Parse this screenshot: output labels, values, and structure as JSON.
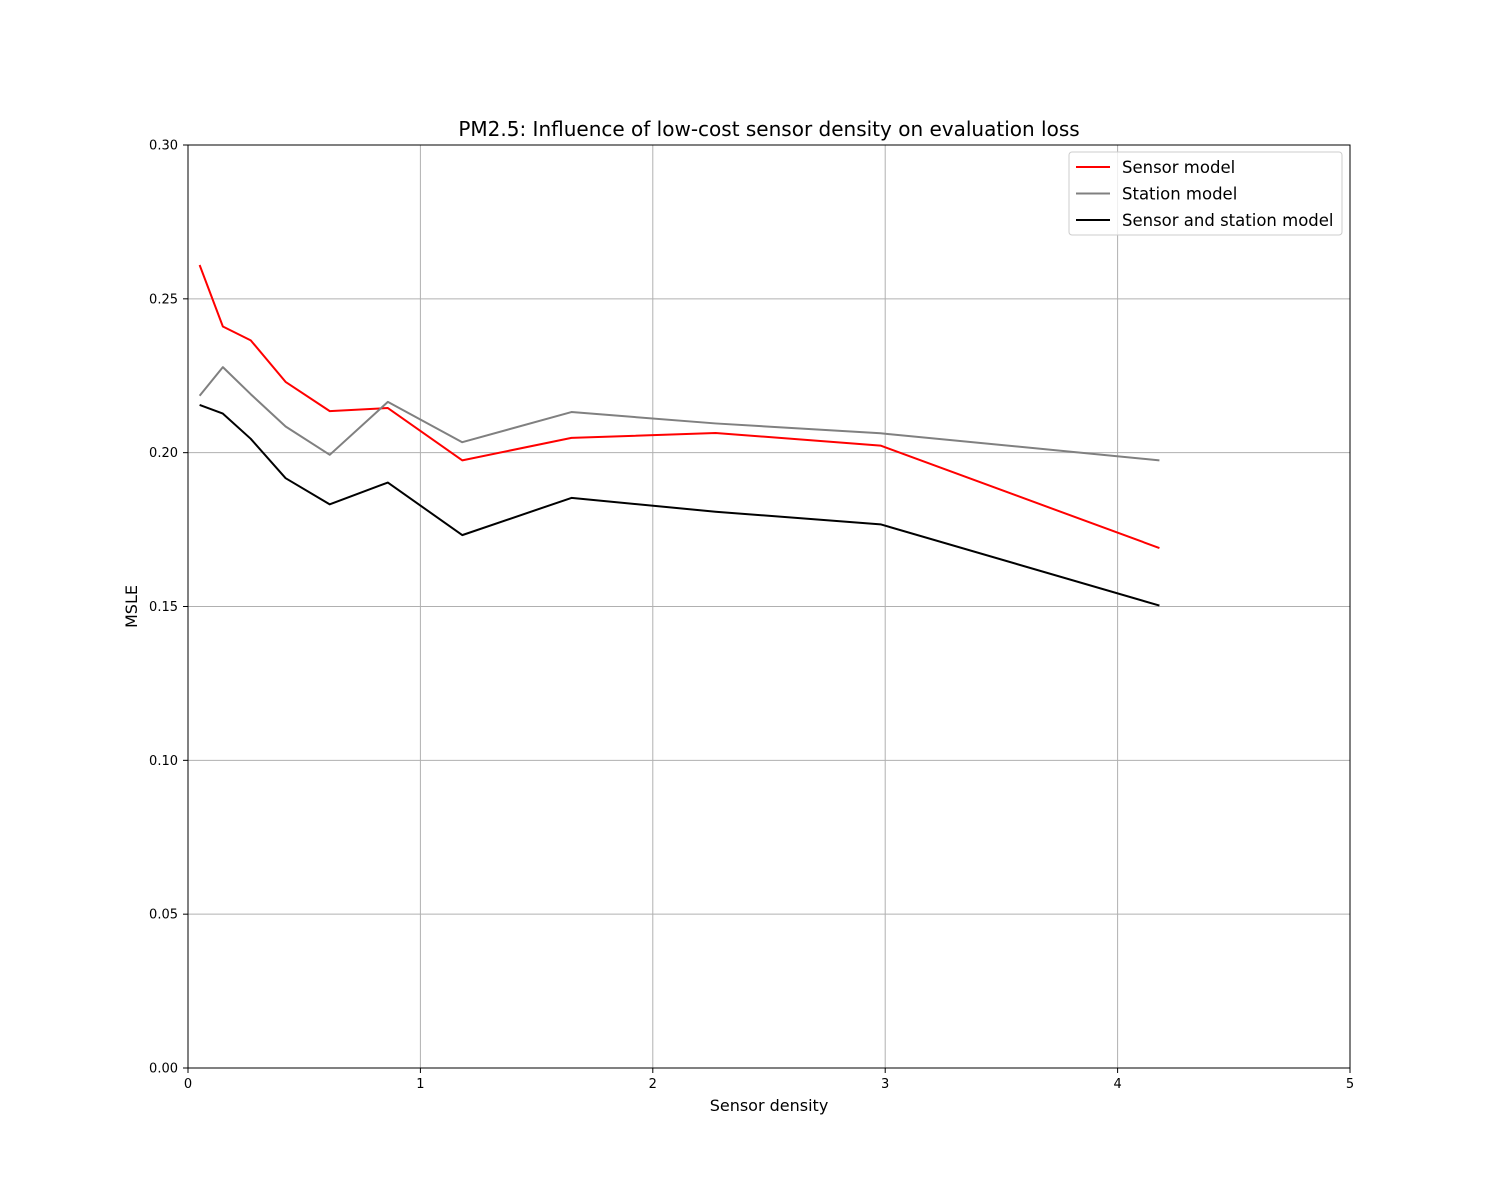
{
  "chart_data": {
    "type": "line",
    "title": "PM2.5: Influence of low-cost sensor density on evaluation loss",
    "xlabel": "Sensor density",
    "ylabel": "MSLE",
    "xlim": [
      0,
      5
    ],
    "ylim": [
      0,
      0.3
    ],
    "xticks": [
      0,
      1,
      2,
      3,
      4,
      5
    ],
    "xtick_labels": [
      "0",
      "1",
      "2",
      "3",
      "4",
      "5"
    ],
    "yticks": [
      0,
      0.05,
      0.1,
      0.15,
      0.2,
      0.25,
      0.3
    ],
    "ytick_labels": [
      "0.00",
      "0.05",
      "0.10",
      "0.15",
      "0.20",
      "0.25",
      "0.30"
    ],
    "grid": true,
    "legend_position": "top-right",
    "x": [
      0.05,
      0.15,
      0.27,
      0.42,
      0.61,
      0.86,
      1.18,
      1.65,
      2.27,
      2.98,
      4.18
    ],
    "series": [
      {
        "name": "Sensor model",
        "color": "#ff0000",
        "values": [
          0.261,
          0.241,
          0.2365,
          0.223,
          0.2135,
          0.2145,
          0.1975,
          0.2048,
          0.2064,
          0.2023,
          0.169
        ]
      },
      {
        "name": "Station model",
        "color": "#808080",
        "values": [
          0.2185,
          0.2278,
          0.219,
          0.2085,
          0.1993,
          0.2165,
          0.2034,
          0.2132,
          0.2095,
          0.2063,
          0.1975
        ]
      },
      {
        "name": "Sensor and station model",
        "color": "#000000",
        "values": [
          0.2155,
          0.2127,
          0.2045,
          0.1917,
          0.1832,
          0.1903,
          0.1732,
          0.1853,
          0.1808,
          0.1767,
          0.1503
        ]
      }
    ]
  }
}
